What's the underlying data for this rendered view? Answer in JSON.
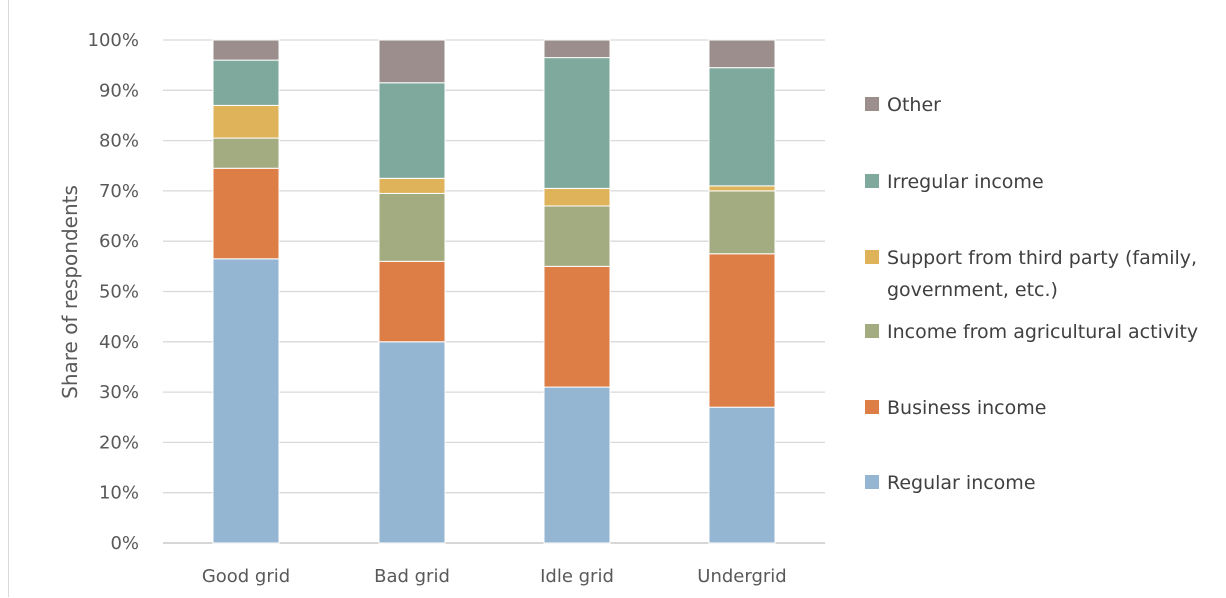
{
  "chart_data": {
    "type": "bar",
    "stacked": true,
    "title": "",
    "xlabel": "",
    "ylabel": "Share of respondents",
    "ylim": [
      0,
      100
    ],
    "y_ticks": [
      "0%",
      "10%",
      "20%",
      "30%",
      "40%",
      "50%",
      "60%",
      "70%",
      "80%",
      "90%",
      "100%"
    ],
    "grid": true,
    "legend_position": "right",
    "categories": [
      "Good grid",
      "Bad grid",
      "Idle grid",
      "Undergrid"
    ],
    "series": [
      {
        "name": "Regular income",
        "color": "#95b6d3",
        "values": [
          56.5,
          40.0,
          31.0,
          27.0
        ]
      },
      {
        "name": "Business income",
        "color": "#dd7e47",
        "values": [
          18.0,
          16.0,
          24.0,
          30.5
        ]
      },
      {
        "name": "Income from agricultural activity",
        "color": "#a3ab80",
        "values": [
          6.0,
          13.5,
          12.0,
          12.5
        ]
      },
      {
        "name": "Support from third party (family, government, etc.)",
        "color": "#dfb35a",
        "values": [
          6.5,
          3.0,
          3.5,
          1.0
        ]
      },
      {
        "name": "Irregular income",
        "color": "#7ea99c",
        "values": [
          9.0,
          19.0,
          26.0,
          23.5
        ]
      },
      {
        "name": "Other",
        "color": "#9b8e8d",
        "values": [
          4.0,
          8.5,
          3.5,
          5.5
        ]
      }
    ]
  }
}
